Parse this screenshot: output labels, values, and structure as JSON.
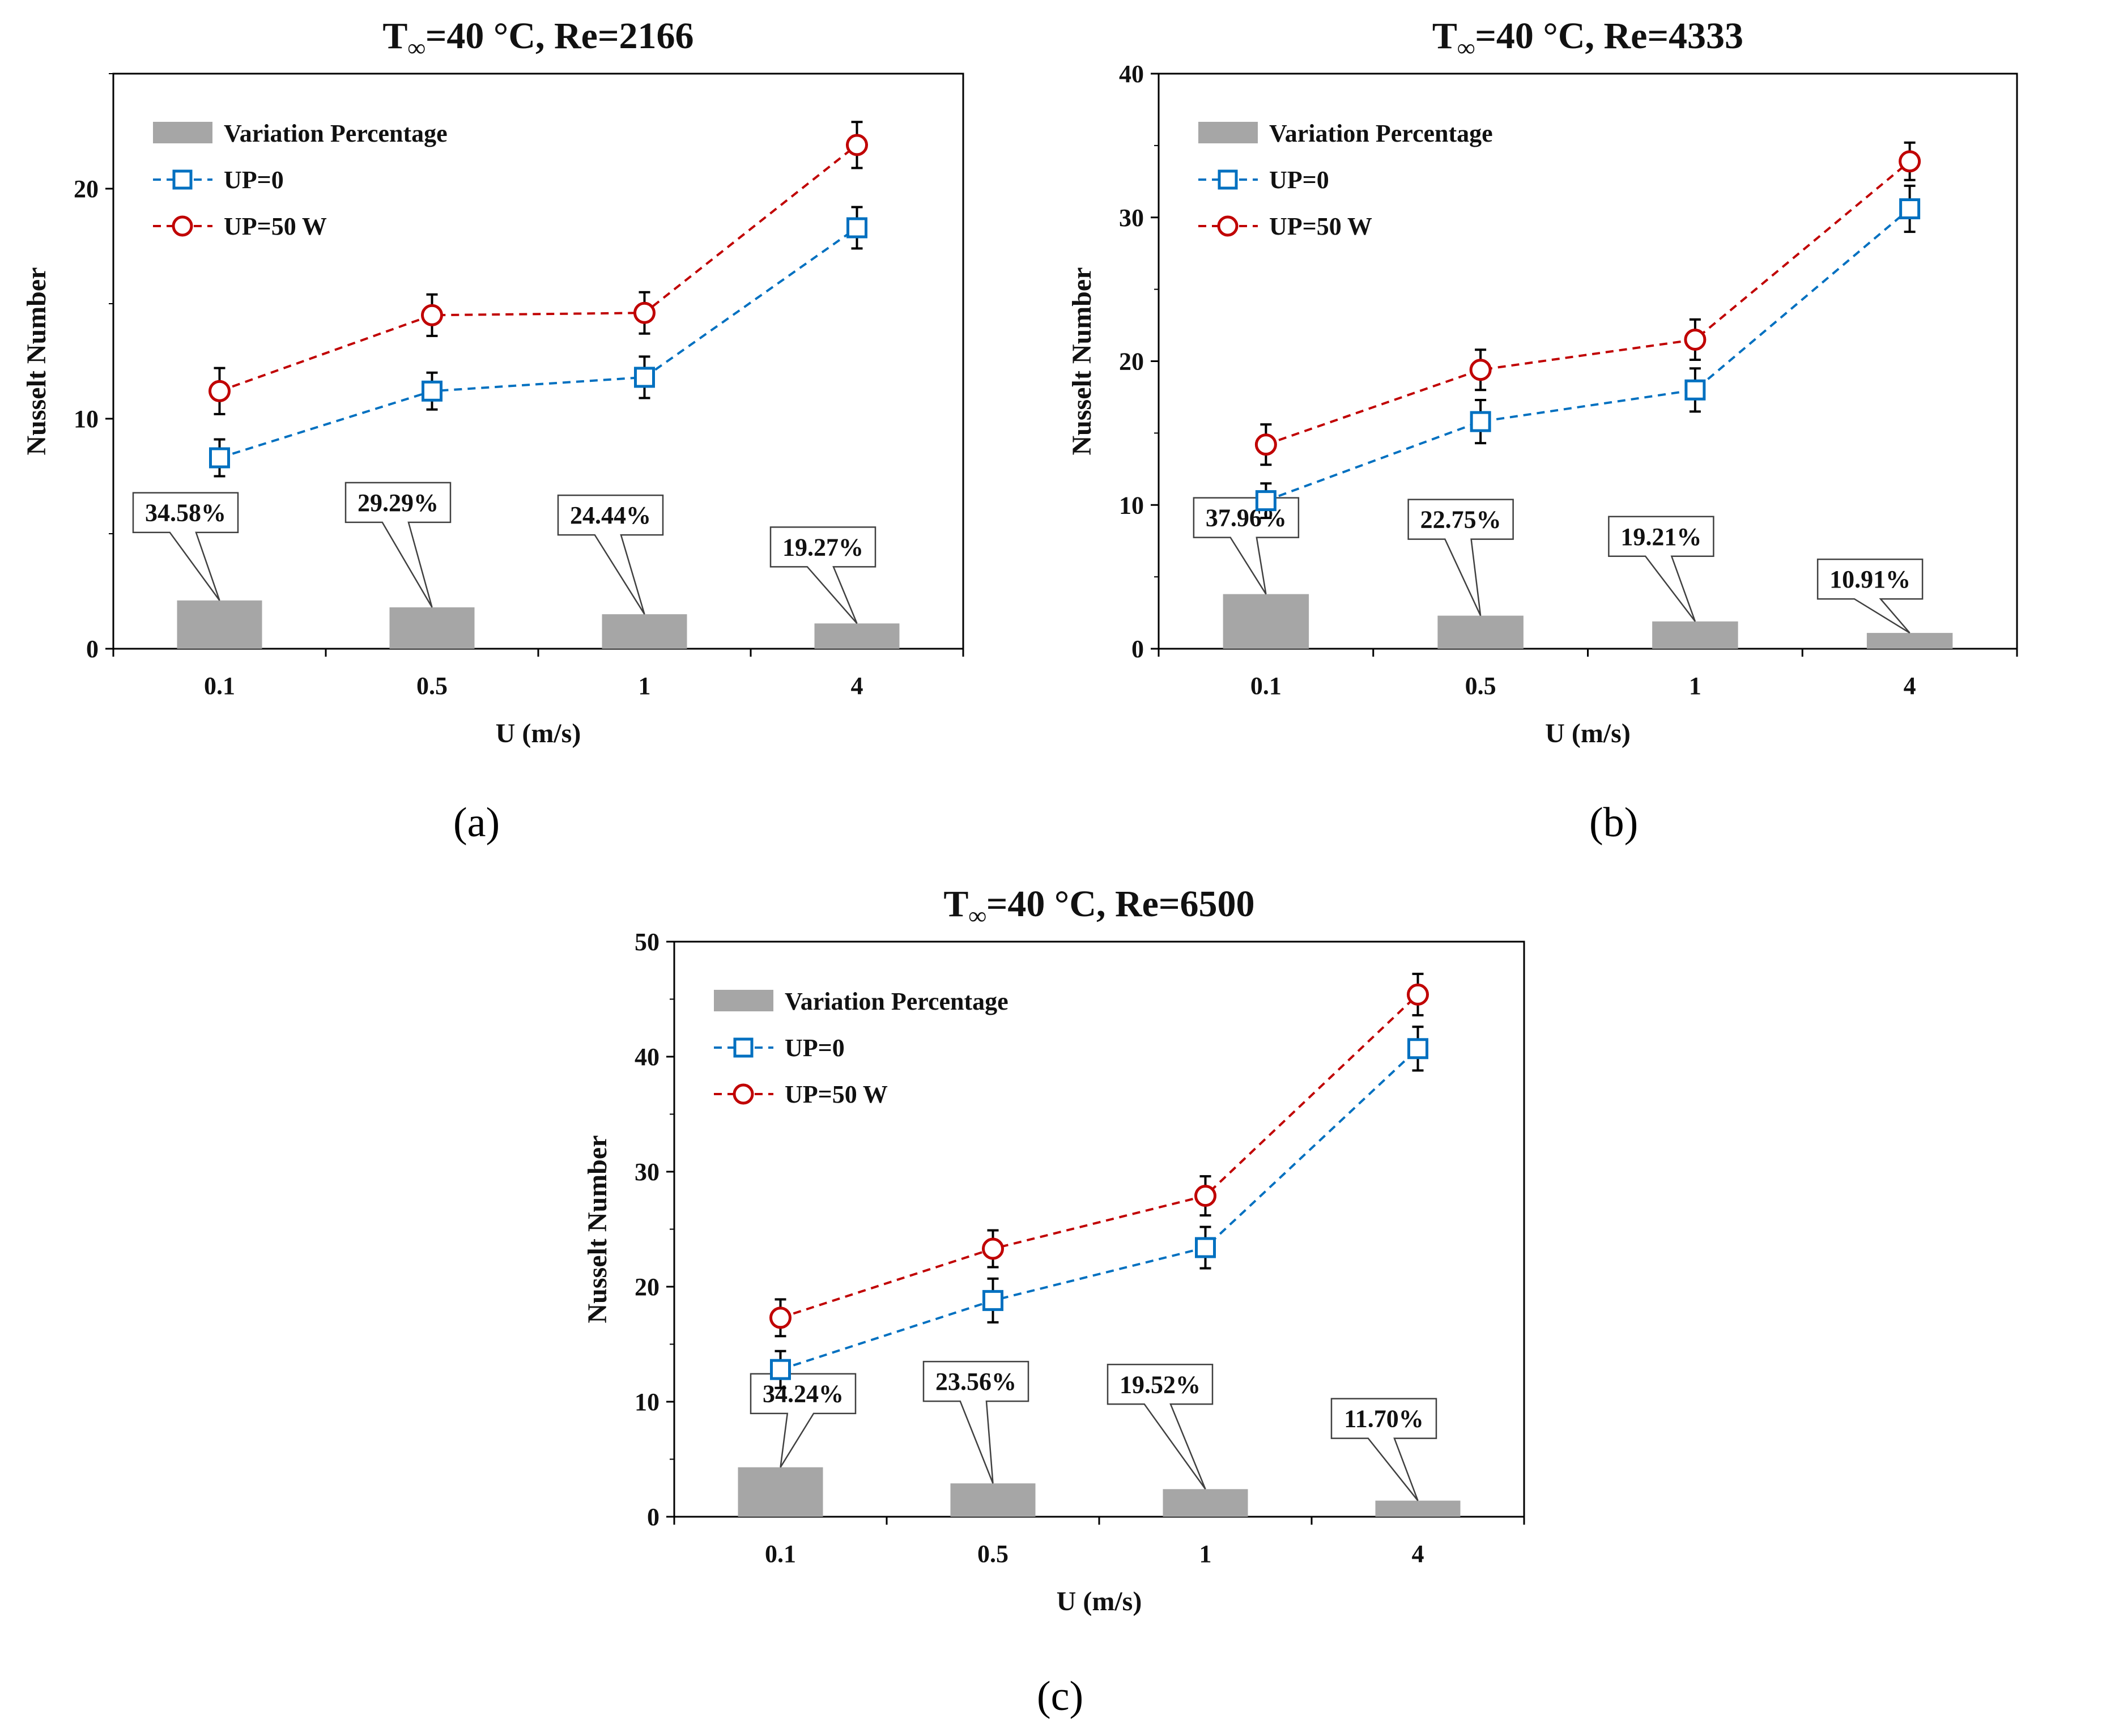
{
  "colors": {
    "bar": "#a6a6a6",
    "up0": "#0070c0",
    "up50": "#c00000",
    "axis": "#000000",
    "error": "#000000"
  },
  "panel_labels": [
    "(a)",
    "(b)",
    "(c)"
  ],
  "chart_data": [
    {
      "type": "bar+line",
      "title_prefix": "T",
      "title_subscript": "∞",
      "title_suffix": "=40 °C, Re=2166",
      "xlabel": "U (m/s)",
      "ylabel": "Nusselt Number",
      "categories": [
        "0.1",
        "0.5",
        "1",
        "4"
      ],
      "ylim": [
        0,
        25
      ],
      "yticks": [
        0,
        10,
        20
      ],
      "ytick_labels": [
        "0",
        "10",
        "20"
      ],
      "grid": false,
      "legend_position": "top-left",
      "legend": [
        "Variation Percentage",
        "UP=0",
        "UP=50 W"
      ],
      "bars": {
        "name": "Variation Percentage",
        "values": [
          2.1,
          1.8,
          1.5,
          1.1
        ],
        "labels": [
          "34.58%",
          "29.29%",
          "24.44%",
          "19.27%"
        ]
      },
      "series": [
        {
          "name": "UP=0",
          "marker": "square",
          "values": [
            8.3,
            11.2,
            11.8,
            18.3
          ],
          "error": [
            0.8,
            0.8,
            0.9,
            0.9
          ]
        },
        {
          "name": "UP=50 W",
          "marker": "circle",
          "values": [
            11.2,
            14.5,
            14.6,
            21.9
          ],
          "error": [
            1.0,
            0.9,
            0.9,
            1.0
          ]
        }
      ]
    },
    {
      "type": "bar+line",
      "title_prefix": "T",
      "title_subscript": "∞",
      "title_suffix": "=40 °C, Re=4333",
      "xlabel": "U (m/s)",
      "ylabel": "Nusselt Number",
      "categories": [
        "0.1",
        "0.5",
        "1",
        "4"
      ],
      "ylim": [
        0,
        40
      ],
      "yticks": [
        0,
        10,
        20,
        30,
        40
      ],
      "ytick_labels": [
        "0",
        "10",
        "20",
        "30",
        "40"
      ],
      "grid": false,
      "legend_position": "top-left",
      "legend": [
        "Variation Percentage",
        "UP=0",
        "UP=50 W"
      ],
      "bars": {
        "name": "Variation Percentage",
        "values": [
          3.8,
          2.3,
          1.9,
          1.1
        ],
        "labels": [
          "37.96%",
          "22.75%",
          "19.21%",
          "10.91%"
        ]
      },
      "series": [
        {
          "name": "UP=0",
          "marker": "square",
          "values": [
            10.3,
            15.8,
            18.0,
            30.6
          ],
          "error": [
            1.2,
            1.5,
            1.5,
            1.6
          ]
        },
        {
          "name": "UP=50 W",
          "marker": "circle",
          "values": [
            14.2,
            19.4,
            21.5,
            33.9
          ],
          "error": [
            1.4,
            1.4,
            1.4,
            1.3
          ]
        }
      ]
    },
    {
      "type": "bar+line",
      "title_prefix": "T",
      "title_subscript": "∞",
      "title_suffix": "=40 °C, Re=6500",
      "xlabel": "U (m/s)",
      "ylabel": "Nusselt Number",
      "categories": [
        "0.1",
        "0.5",
        "1",
        "4"
      ],
      "ylim": [
        0,
        50
      ],
      "yticks": [
        0,
        10,
        20,
        30,
        40,
        50
      ],
      "ytick_labels": [
        "0",
        "10",
        "20",
        "30",
        "40",
        "50"
      ],
      "grid": false,
      "legend_position": "top-left",
      "legend": [
        "Variation Percentage",
        "UP=0",
        "UP=50 W"
      ],
      "bars": {
        "name": "Variation Percentage",
        "values": [
          4.3,
          2.9,
          2.4,
          1.4
        ],
        "labels": [
          "34.24%",
          "23.56%",
          "19.52%",
          "11.70%"
        ]
      },
      "series": [
        {
          "name": "UP=0",
          "marker": "square",
          "values": [
            12.8,
            18.8,
            23.4,
            40.7
          ],
          "error": [
            1.6,
            1.9,
            1.8,
            1.9
          ]
        },
        {
          "name": "UP=50 W",
          "marker": "circle",
          "values": [
            17.3,
            23.3,
            27.9,
            45.4
          ],
          "error": [
            1.6,
            1.6,
            1.7,
            1.8
          ]
        }
      ]
    }
  ]
}
